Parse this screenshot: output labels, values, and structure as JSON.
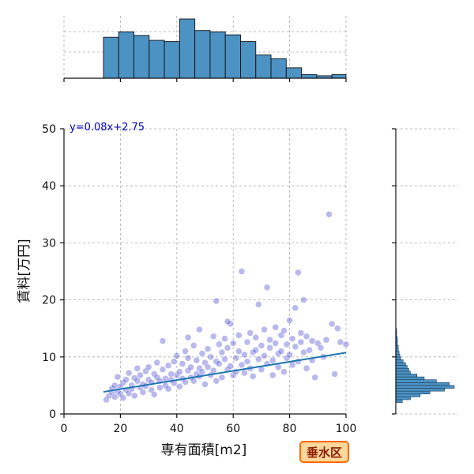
{
  "chart_data": {
    "type": "scatter",
    "title": "",
    "xlabel": "専有面積[m2]",
    "ylabel": "賃料[万円]",
    "xlim": [
      0,
      100
    ],
    "ylim": [
      0,
      50
    ],
    "xticks": [
      "0",
      "20",
      "40",
      "60",
      "80",
      "100"
    ],
    "yticks": [
      "0",
      "10",
      "20",
      "30",
      "40",
      "50"
    ],
    "grid": true,
    "regression": {
      "label": "y=0.08x+2.75",
      "slope": 0.08,
      "intercept": 2.75,
      "x_range": [
        14,
        100
      ]
    },
    "district_label": "垂水区",
    "marginal_x_hist": {
      "bin_edges": [
        14,
        19.4,
        24.8,
        30.2,
        35.6,
        41,
        46.4,
        51.8,
        57.2,
        62.6,
        68,
        73.4,
        78.8,
        84.2,
        89.6,
        95,
        100
      ],
      "counts": [
        67,
        76,
        70,
        62,
        60,
        97,
        78,
        76,
        71,
        60,
        38,
        32,
        17,
        6,
        4,
        6
      ]
    },
    "marginal_y_hist": {
      "bin_edges": [
        2,
        2.5,
        3,
        3.5,
        4,
        4.5,
        5,
        5.5,
        6,
        6.5,
        7,
        7.5,
        8,
        8.5,
        9,
        9.5,
        10,
        10.5,
        11,
        11.5,
        12,
        12.5,
        13,
        13.5,
        14,
        14.5,
        15
      ],
      "counts": [
        8,
        18,
        30,
        42,
        60,
        72,
        66,
        50,
        35,
        26,
        18,
        16,
        14,
        12,
        9,
        6,
        5,
        4,
        3,
        3,
        2,
        2,
        2,
        1,
        1,
        1
      ]
    },
    "points": [
      [
        15,
        2.5
      ],
      [
        16,
        3.2
      ],
      [
        17,
        3.8
      ],
      [
        17,
        4.5
      ],
      [
        18,
        3.0
      ],
      [
        18,
        5.0
      ],
      [
        19,
        4.0
      ],
      [
        19,
        6.5
      ],
      [
        20,
        3.5
      ],
      [
        20,
        4.8
      ],
      [
        21,
        5.5
      ],
      [
        21,
        2.8
      ],
      [
        22,
        4.2
      ],
      [
        22,
        6.0
      ],
      [
        23,
        3.6
      ],
      [
        23,
        7.2
      ],
      [
        24,
        5.0
      ],
      [
        24,
        4.4
      ],
      [
        25,
        6.3
      ],
      [
        25,
        3.2
      ],
      [
        26,
        5.8
      ],
      [
        26,
        8.0
      ],
      [
        27,
        4.6
      ],
      [
        27,
        6.8
      ],
      [
        28,
        5.2
      ],
      [
        28,
        3.8
      ],
      [
        29,
        7.5
      ],
      [
        29,
        4.9
      ],
      [
        30,
        6.0
      ],
      [
        30,
        8.2
      ],
      [
        31,
        5.5
      ],
      [
        31,
        4.2
      ],
      [
        32,
        7.0
      ],
      [
        32,
        3.4
      ],
      [
        33,
        6.4
      ],
      [
        33,
        9.0
      ],
      [
        34,
        5.8
      ],
      [
        34,
        4.6
      ],
      [
        35,
        7.8
      ],
      [
        35,
        12.8
      ],
      [
        36,
        6.2
      ],
      [
        36,
        5.0
      ],
      [
        37,
        8.5
      ],
      [
        37,
        4.4
      ],
      [
        38,
        7.0
      ],
      [
        38,
        6.0
      ],
      [
        39,
        9.2
      ],
      [
        39,
        5.4
      ],
      [
        40,
        6.8
      ],
      [
        40,
        10.2
      ],
      [
        41,
        7.4
      ],
      [
        41,
        4.8
      ],
      [
        42,
        8.8
      ],
      [
        42,
        6.2
      ],
      [
        43,
        5.6
      ],
      [
        43,
        11.0
      ],
      [
        44,
        7.6
      ],
      [
        44,
        9.8
      ],
      [
        45,
        6.4
      ],
      [
        45,
        8.2
      ],
      [
        46,
        12.0
      ],
      [
        46,
        5.8
      ],
      [
        47,
        7.0
      ],
      [
        47,
        9.4
      ],
      [
        48,
        8.0
      ],
      [
        48,
        6.6
      ],
      [
        49,
        10.6
      ],
      [
        49,
        7.4
      ],
      [
        50,
        5.2
      ],
      [
        50,
        9.0
      ],
      [
        51,
        11.4
      ],
      [
        51,
        8.2
      ],
      [
        52,
        6.8
      ],
      [
        52,
        10.0
      ],
      [
        53,
        13.6
      ],
      [
        53,
        7.6
      ],
      [
        54,
        9.2
      ],
      [
        54,
        5.8
      ],
      [
        55,
        12.2
      ],
      [
        55,
        8.8
      ],
      [
        56,
        6.4
      ],
      [
        56,
        10.8
      ],
      [
        57,
        9.6
      ],
      [
        57,
        13.2
      ],
      [
        58,
        7.8
      ],
      [
        58,
        11.6
      ],
      [
        59,
        15.8
      ],
      [
        59,
        8.4
      ],
      [
        60,
        6.8
      ],
      [
        60,
        12.4
      ],
      [
        61,
        9.8
      ],
      [
        61,
        7.4
      ],
      [
        62,
        11.0
      ],
      [
        62,
        13.8
      ],
      [
        63,
        8.6
      ],
      [
        63,
        25.0
      ],
      [
        64,
        10.4
      ],
      [
        64,
        7.2
      ],
      [
        65,
        12.6
      ],
      [
        65,
        9.2
      ],
      [
        66,
        14.2
      ],
      [
        66,
        8.0
      ],
      [
        67,
        10.8
      ],
      [
        67,
        6.6
      ],
      [
        68,
        13.4
      ],
      [
        68,
        11.2
      ],
      [
        69,
        9.6
      ],
      [
        69,
        19.2
      ],
      [
        70,
        12.0
      ],
      [
        70,
        7.8
      ],
      [
        71,
        14.8
      ],
      [
        71,
        10.2
      ],
      [
        72,
        22.2
      ],
      [
        72,
        8.8
      ],
      [
        73,
        11.6
      ],
      [
        73,
        13.0
      ],
      [
        74,
        9.4
      ],
      [
        74,
        6.8
      ],
      [
        75,
        15.2
      ],
      [
        75,
        12.4
      ],
      [
        76,
        10.6
      ],
      [
        76,
        8.2
      ],
      [
        77,
        13.8
      ],
      [
        77,
        11.0
      ],
      [
        78,
        14.6
      ],
      [
        78,
        7.4
      ],
      [
        79,
        12.2
      ],
      [
        79,
        9.8
      ],
      [
        80,
        16.4
      ],
      [
        80,
        10.4
      ],
      [
        81,
        13.2
      ],
      [
        81,
        8.6
      ],
      [
        82,
        18.6
      ],
      [
        82,
        11.8
      ],
      [
        83,
        24.8
      ],
      [
        83,
        9.2
      ],
      [
        84,
        12.6
      ],
      [
        84,
        14.2
      ],
      [
        85,
        20.0
      ],
      [
        85,
        10.8
      ],
      [
        86,
        8.0
      ],
      [
        86,
        13.6
      ],
      [
        87,
        11.2
      ],
      [
        88,
        9.4
      ],
      [
        88,
        12.8
      ],
      [
        89,
        6.4
      ],
      [
        90,
        12.4
      ],
      [
        91,
        11.6
      ],
      [
        92,
        10.0
      ],
      [
        93,
        13.0
      ],
      [
        94,
        35.0
      ],
      [
        95,
        15.8
      ],
      [
        96,
        7.0
      ],
      [
        97,
        15.0
      ],
      [
        98,
        12.6
      ],
      [
        100,
        12.2
      ],
      [
        54,
        19.8
      ],
      [
        48,
        14.8
      ],
      [
        44,
        13.4
      ],
      [
        58,
        16.2
      ]
    ]
  }
}
